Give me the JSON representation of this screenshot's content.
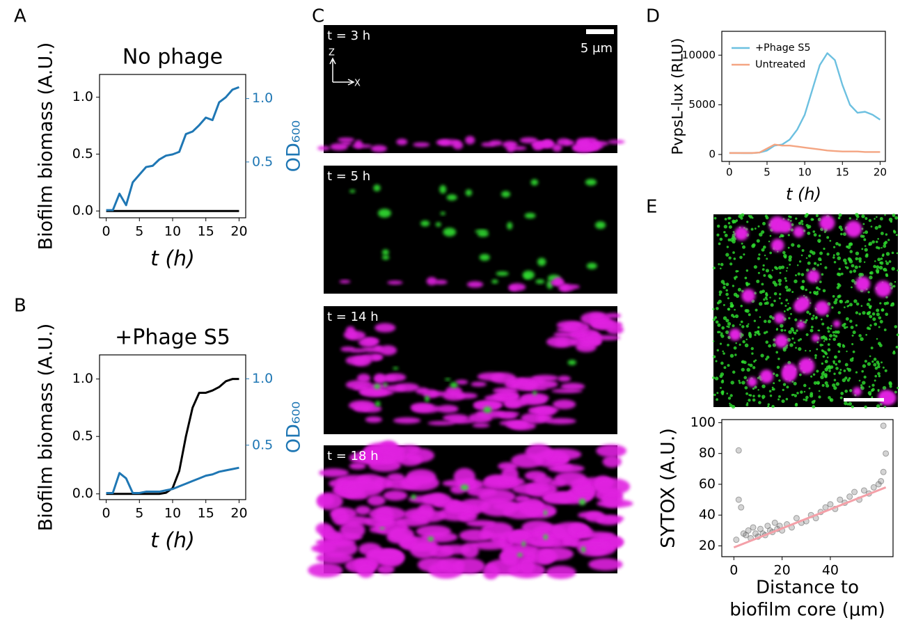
{
  "panel_labels": [
    "A",
    "B",
    "C",
    "D",
    "E"
  ],
  "micrographs": {
    "timepoints": [
      "t = 3 h",
      "t = 5 h",
      "t = 14 h",
      "t = 18 h"
    ],
    "scale_bar": "5 μm",
    "axis_z": "Z",
    "axis_x": "X"
  },
  "chart_data": [
    {
      "type": "line",
      "title": "No phage",
      "xlabel": "t (h)",
      "ylabel": "Biofilm biomass (A.U.)",
      "y2label": "OD₆₀₀",
      "x": [
        0,
        1,
        2,
        3,
        4,
        5,
        6,
        7,
        8,
        9,
        10,
        11,
        12,
        13,
        14,
        15,
        16,
        17,
        18,
        19,
        20
      ],
      "xlim": [
        -1,
        21
      ],
      "xticks": [
        0,
        5,
        10,
        15,
        20
      ],
      "ylim": [
        -0.06,
        1.2
      ],
      "yticks": [
        {
          "value": 0,
          "label": "0.0"
        },
        {
          "value": 0.5,
          "label": "0.5"
        },
        {
          "value": 1,
          "label": "1.0"
        }
      ],
      "y2lim": [
        0.06,
        1.19
      ],
      "y2ticks": [
        {
          "value": 0.5,
          "label": "0.5"
        },
        {
          "value": 1,
          "label": "1.0"
        }
      ],
      "y2color": "#1f77b4",
      "series": [
        {
          "color": "#000000",
          "values": [
            0,
            0,
            0,
            0,
            0,
            0,
            0,
            0,
            0,
            0,
            0,
            0,
            0,
            0,
            0,
            0,
            0,
            0,
            0,
            0,
            0
          ]
        },
        {
          "color": "#1f77b4",
          "axis": "y2",
          "values": [
            0.12,
            0.12,
            0.25,
            0.16,
            0.34,
            0.4,
            0.46,
            0.47,
            0.52,
            0.55,
            0.56,
            0.58,
            0.72,
            0.74,
            0.79,
            0.85,
            0.83,
            0.97,
            1.01,
            1.07,
            1.09
          ]
        }
      ]
    },
    {
      "type": "line",
      "title": "+Phage S5",
      "xlabel": "t (h)",
      "ylabel": "Biofilm biomass (A.U.)",
      "y2label": "OD₆₀₀",
      "x": [
        0,
        1,
        2,
        3,
        4,
        5,
        6,
        7,
        8,
        9,
        10,
        11,
        12,
        13,
        14,
        15,
        16,
        17,
        18,
        19,
        20
      ],
      "xlim": [
        -1,
        21
      ],
      "xticks": [
        0,
        5,
        10,
        15,
        20
      ],
      "ylim": [
        -0.05,
        1.21
      ],
      "yticks": [
        {
          "value": 0,
          "label": "0.0"
        },
        {
          "value": 0.5,
          "label": "0.5"
        },
        {
          "value": 1,
          "label": "1.0"
        }
      ],
      "y2lim": [
        0.09,
        1.18
      ],
      "y2ticks": [
        {
          "value": 0.5,
          "label": "0.5"
        },
        {
          "value": 1,
          "label": "1.0"
        }
      ],
      "y2color": "#1f77b4",
      "series": [
        {
          "color": "#000000",
          "values": [
            0,
            0,
            0,
            0,
            0,
            0,
            0,
            0,
            0,
            0.01,
            0.05,
            0.2,
            0.5,
            0.75,
            0.88,
            0.88,
            0.9,
            0.93,
            0.98,
            1.0,
            1.0
          ]
        },
        {
          "color": "#1f77b4",
          "axis": "y2",
          "values": [
            0.14,
            0.14,
            0.29,
            0.25,
            0.14,
            0.14,
            0.15,
            0.15,
            0.15,
            0.16,
            0.17,
            0.19,
            0.21,
            0.23,
            0.25,
            0.27,
            0.28,
            0.3,
            0.31,
            0.32,
            0.33
          ]
        }
      ]
    },
    {
      "type": "line",
      "xlabel": "t (h)",
      "ylabel": "PvpsL-lux (RLU)",
      "legend": "upper left",
      "x": [
        0,
        1,
        2,
        3,
        4,
        5,
        6,
        7,
        8,
        9,
        10,
        11,
        12,
        13,
        14,
        15,
        16,
        17,
        18,
        19,
        20
      ],
      "xlim": [
        -1,
        20.7
      ],
      "xticks": [
        0,
        5,
        10,
        15,
        20
      ],
      "ylim": [
        -700,
        12400
      ],
      "yticks": [
        0,
        5000,
        10000
      ],
      "series": [
        {
          "name": "+Phage S5",
          "color": "#6cc0e0",
          "values": [
            150,
            150,
            140,
            140,
            200,
            400,
            900,
            1000,
            1500,
            2500,
            4000,
            6500,
            9000,
            10200,
            9500,
            7000,
            5000,
            4200,
            4300,
            4000,
            3500
          ]
        },
        {
          "name": "Untreated",
          "color": "#f4a582",
          "values": [
            150,
            150,
            150,
            150,
            200,
            600,
            1000,
            900,
            900,
            800,
            700,
            600,
            500,
            400,
            350,
            300,
            300,
            300,
            250,
            250,
            250
          ]
        }
      ]
    },
    {
      "type": "scatter",
      "xlabel": [
        "Distance to",
        "biofilm core (μm)"
      ],
      "ylabel": "SYTOX (A.U.)",
      "xlim": [
        -5,
        66
      ],
      "xticks": [
        0,
        20,
        40
      ],
      "ylim": [
        13,
        102
      ],
      "yticks": [
        20,
        40,
        60,
        80,
        100
      ],
      "series": [
        {
          "type": "scatter",
          "color": "#555555",
          "x": [
            1,
            2,
            3,
            4,
            5,
            6,
            7,
            8,
            9,
            10,
            11,
            12,
            13,
            14,
            15,
            16,
            17,
            18,
            19,
            20,
            22,
            24,
            26,
            28,
            30,
            32,
            34,
            36,
            38,
            40,
            42,
            44,
            46,
            48,
            50,
            52,
            54,
            56,
            58,
            60,
            61,
            62,
            63,
            2,
            62
          ],
          "values": [
            24,
            82,
            45,
            28,
            27,
            30,
            25,
            32,
            28,
            26,
            31,
            28,
            27,
            33,
            30,
            29,
            35,
            31,
            33,
            30,
            34,
            32,
            38,
            35,
            36,
            40,
            38,
            42,
            45,
            47,
            44,
            50,
            48,
            52,
            55,
            50,
            56,
            54,
            58,
            60,
            62,
            68,
            80,
            50,
            98
          ]
        },
        {
          "type": "line",
          "color": "#f4a0a8",
          "x": [
            0,
            63
          ],
          "values": [
            19,
            58
          ]
        }
      ]
    }
  ]
}
